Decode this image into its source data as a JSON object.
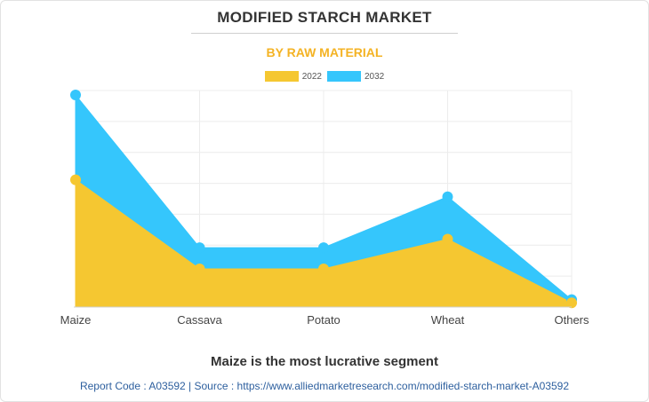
{
  "header": {
    "title": "MODIFIED STARCH MARKET",
    "subtitle": "BY RAW MATERIAL"
  },
  "chart_data": {
    "type": "area",
    "categories": [
      "Maize",
      "Cassava",
      "Potato",
      "Wheat",
      "Others"
    ],
    "series": [
      {
        "name": "2032",
        "color": "#35c6fc",
        "values": [
          100,
          28,
          28,
          52,
          3.5
        ]
      },
      {
        "name": "2022",
        "color": "#f5c731",
        "values": [
          60,
          18,
          18,
          32,
          2
        ]
      }
    ],
    "ylim": [
      0,
      100
    ],
    "grid": true,
    "legend_position": "top-center",
    "y_tick_labels_shown": false
  },
  "caption": "Maize is the most lucrative segment",
  "footer": {
    "text": "Report Code : A03592  |  Source : https://www.alliedmarketresearch.com/modified-starch-market-A03592"
  }
}
